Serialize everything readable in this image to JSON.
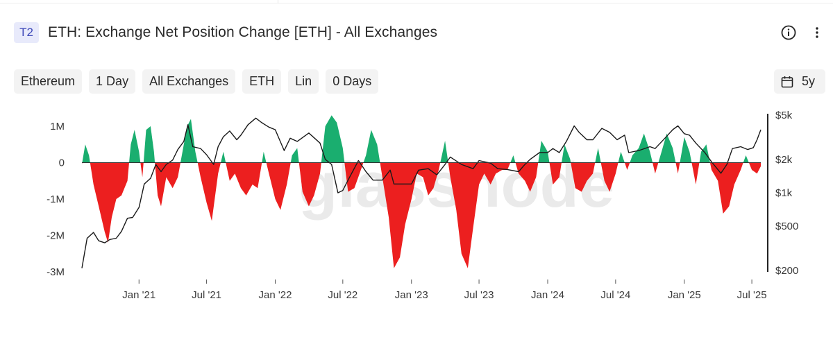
{
  "header": {
    "badge": "T2",
    "title": "ETH: Exchange Net Position Change [ETH] - All Exchanges"
  },
  "toolbar": {
    "info_icon": "info-circle-icon",
    "more_icon": "vertical-ellipsis-icon"
  },
  "filters": [
    "Ethereum",
    "1 Day",
    "All Exchanges",
    "ETH",
    "Lin",
    "0 Days"
  ],
  "range": {
    "icon": "calendar-icon",
    "label": "5y"
  },
  "colors": {
    "positive": "#1aae6f",
    "negative": "#ec1f1f",
    "price": "#1a1a1a"
  },
  "watermark": "glassnode",
  "chart_data": {
    "type": "area",
    "x_ticks": [
      "Jan '21",
      "Jul '21",
      "Jan '22",
      "Jul '22",
      "Jan '23",
      "Jul '23",
      "Jan '24",
      "Jul '24",
      "Jan '25",
      "Jul '25"
    ],
    "x_range": [
      "2020-08-01",
      "2025-07-25"
    ],
    "y_left": {
      "ticks": [
        "1M",
        "0",
        "-1M",
        "-2M",
        "-3M"
      ],
      "range": [
        -3000000,
        1000000
      ]
    },
    "y_right": {
      "ticks": [
        "$5k",
        "$2k",
        "$1k",
        "$500",
        "$200"
      ],
      "scale": "log",
      "range": [
        200,
        5000
      ]
    },
    "grid": false,
    "net_position_change": [
      {
        "d": "2020-08-01",
        "v": -50000
      },
      {
        "d": "2020-08-10",
        "v": 500000
      },
      {
        "d": "2020-08-20",
        "v": 200000
      },
      {
        "d": "2020-09-01",
        "v": -600000
      },
      {
        "d": "2020-09-15",
        "v": -1200000
      },
      {
        "d": "2020-10-01",
        "v": -1900000
      },
      {
        "d": "2020-10-10",
        "v": -2200000
      },
      {
        "d": "2020-10-20",
        "v": -1500000
      },
      {
        "d": "2020-11-01",
        "v": -1000000
      },
      {
        "d": "2020-11-15",
        "v": -900000
      },
      {
        "d": "2020-12-01",
        "v": -500000
      },
      {
        "d": "2020-12-10",
        "v": 500000
      },
      {
        "d": "2020-12-20",
        "v": 900000
      },
      {
        "d": "2021-01-01",
        "v": 300000
      },
      {
        "d": "2021-01-10",
        "v": -400000
      },
      {
        "d": "2021-01-20",
        "v": 900000
      },
      {
        "d": "2021-02-01",
        "v": 1000000
      },
      {
        "d": "2021-02-10",
        "v": 300000
      },
      {
        "d": "2021-02-20",
        "v": -900000
      },
      {
        "d": "2021-03-01",
        "v": -1200000
      },
      {
        "d": "2021-03-15",
        "v": -400000
      },
      {
        "d": "2021-04-01",
        "v": -700000
      },
      {
        "d": "2021-04-15",
        "v": -400000
      },
      {
        "d": "2021-05-01",
        "v": 500000
      },
      {
        "d": "2021-05-10",
        "v": 1000000
      },
      {
        "d": "2021-05-20",
        "v": 1200000
      },
      {
        "d": "2021-06-01",
        "v": 300000
      },
      {
        "d": "2021-06-15",
        "v": -400000
      },
      {
        "d": "2021-07-01",
        "v": -1100000
      },
      {
        "d": "2021-07-15",
        "v": -1600000
      },
      {
        "d": "2021-08-01",
        "v": -300000
      },
      {
        "d": "2021-08-15",
        "v": 300000
      },
      {
        "d": "2021-09-01",
        "v": -500000
      },
      {
        "d": "2021-09-15",
        "v": -300000
      },
      {
        "d": "2021-10-01",
        "v": -700000
      },
      {
        "d": "2021-10-15",
        "v": -900000
      },
      {
        "d": "2021-11-01",
        "v": -600000
      },
      {
        "d": "2021-11-15",
        "v": -700000
      },
      {
        "d": "2021-12-01",
        "v": 300000
      },
      {
        "d": "2021-12-15",
        "v": -300000
      },
      {
        "d": "2022-01-01",
        "v": -1000000
      },
      {
        "d": "2022-01-15",
        "v": -1300000
      },
      {
        "d": "2022-02-01",
        "v": -600000
      },
      {
        "d": "2022-02-15",
        "v": 200000
      },
      {
        "d": "2022-03-01",
        "v": 400000
      },
      {
        "d": "2022-03-15",
        "v": -800000
      },
      {
        "d": "2022-04-01",
        "v": -1200000
      },
      {
        "d": "2022-04-15",
        "v": -900000
      },
      {
        "d": "2022-05-01",
        "v": -300000
      },
      {
        "d": "2022-05-15",
        "v": 1000000
      },
      {
        "d": "2022-06-01",
        "v": 1300000
      },
      {
        "d": "2022-06-15",
        "v": 1100000
      },
      {
        "d": "2022-07-01",
        "v": 400000
      },
      {
        "d": "2022-07-15",
        "v": -800000
      },
      {
        "d": "2022-08-01",
        "v": -700000
      },
      {
        "d": "2022-08-15",
        "v": -300000
      },
      {
        "d": "2022-09-01",
        "v": 200000
      },
      {
        "d": "2022-09-15",
        "v": 900000
      },
      {
        "d": "2022-10-01",
        "v": 500000
      },
      {
        "d": "2022-10-15",
        "v": -400000
      },
      {
        "d": "2022-11-01",
        "v": -1500000
      },
      {
        "d": "2022-11-15",
        "v": -2900000
      },
      {
        "d": "2022-12-01",
        "v": -2600000
      },
      {
        "d": "2022-12-15",
        "v": -1700000
      },
      {
        "d": "2023-01-01",
        "v": -1000000
      },
      {
        "d": "2023-01-15",
        "v": -300000
      },
      {
        "d": "2023-02-01",
        "v": -400000
      },
      {
        "d": "2023-02-15",
        "v": -900000
      },
      {
        "d": "2023-03-01",
        "v": -700000
      },
      {
        "d": "2023-03-15",
        "v": -200000
      },
      {
        "d": "2023-04-01",
        "v": 600000
      },
      {
        "d": "2023-04-15",
        "v": -400000
      },
      {
        "d": "2023-05-01",
        "v": -1300000
      },
      {
        "d": "2023-05-15",
        "v": -2500000
      },
      {
        "d": "2023-06-01",
        "v": -2900000
      },
      {
        "d": "2023-06-15",
        "v": -1800000
      },
      {
        "d": "2023-07-01",
        "v": -600000
      },
      {
        "d": "2023-07-15",
        "v": -300000
      },
      {
        "d": "2023-08-01",
        "v": -600000
      },
      {
        "d": "2023-08-15",
        "v": -300000
      },
      {
        "d": "2023-09-01",
        "v": -200000
      },
      {
        "d": "2023-09-15",
        "v": -200000
      },
      {
        "d": "2023-10-01",
        "v": 200000
      },
      {
        "d": "2023-10-15",
        "v": -300000
      },
      {
        "d": "2023-11-01",
        "v": -500000
      },
      {
        "d": "2023-11-15",
        "v": -800000
      },
      {
        "d": "2023-12-01",
        "v": -400000
      },
      {
        "d": "2023-12-15",
        "v": 600000
      },
      {
        "d": "2024-01-01",
        "v": 300000
      },
      {
        "d": "2024-01-15",
        "v": -600000
      },
      {
        "d": "2024-02-01",
        "v": -400000
      },
      {
        "d": "2024-02-15",
        "v": 500000
      },
      {
        "d": "2024-03-01",
        "v": 100000
      },
      {
        "d": "2024-03-15",
        "v": -700000
      },
      {
        "d": "2024-04-01",
        "v": -800000
      },
      {
        "d": "2024-04-15",
        "v": -500000
      },
      {
        "d": "2024-05-01",
        "v": -300000
      },
      {
        "d": "2024-05-15",
        "v": 400000
      },
      {
        "d": "2024-06-01",
        "v": -500000
      },
      {
        "d": "2024-06-15",
        "v": -800000
      },
      {
        "d": "2024-07-01",
        "v": -300000
      },
      {
        "d": "2024-07-15",
        "v": 300000
      },
      {
        "d": "2024-08-01",
        "v": -200000
      },
      {
        "d": "2024-08-15",
        "v": 200000
      },
      {
        "d": "2024-09-01",
        "v": 400000
      },
      {
        "d": "2024-09-15",
        "v": 800000
      },
      {
        "d": "2024-10-01",
        "v": 300000
      },
      {
        "d": "2024-10-15",
        "v": -300000
      },
      {
        "d": "2024-11-01",
        "v": 300000
      },
      {
        "d": "2024-11-15",
        "v": 800000
      },
      {
        "d": "2024-12-01",
        "v": 400000
      },
      {
        "d": "2024-12-15",
        "v": -300000
      },
      {
        "d": "2025-01-01",
        "v": 700000
      },
      {
        "d": "2025-01-15",
        "v": 300000
      },
      {
        "d": "2025-02-01",
        "v": -600000
      },
      {
        "d": "2025-02-15",
        "v": 300000
      },
      {
        "d": "2025-03-01",
        "v": 500000
      },
      {
        "d": "2025-03-15",
        "v": -200000
      },
      {
        "d": "2025-04-01",
        "v": -500000
      },
      {
        "d": "2025-04-15",
        "v": -1400000
      },
      {
        "d": "2025-05-01",
        "v": -1200000
      },
      {
        "d": "2025-05-15",
        "v": -600000
      },
      {
        "d": "2025-06-01",
        "v": -200000
      },
      {
        "d": "2025-06-15",
        "v": 200000
      },
      {
        "d": "2025-07-01",
        "v": -200000
      },
      {
        "d": "2025-07-15",
        "v": -300000
      },
      {
        "d": "2025-07-25",
        "v": -100000
      }
    ],
    "price_usd": [
      {
        "d": "2020-08-01",
        "v": 210
      },
      {
        "d": "2020-08-15",
        "v": 390
      },
      {
        "d": "2020-09-01",
        "v": 440
      },
      {
        "d": "2020-09-15",
        "v": 370
      },
      {
        "d": "2020-10-01",
        "v": 355
      },
      {
        "d": "2020-10-15",
        "v": 380
      },
      {
        "d": "2020-11-01",
        "v": 390
      },
      {
        "d": "2020-11-15",
        "v": 450
      },
      {
        "d": "2020-12-01",
        "v": 590
      },
      {
        "d": "2020-12-15",
        "v": 600
      },
      {
        "d": "2021-01-01",
        "v": 740
      },
      {
        "d": "2021-01-15",
        "v": 1200
      },
      {
        "d": "2021-02-01",
        "v": 1350
      },
      {
        "d": "2021-02-15",
        "v": 1800
      },
      {
        "d": "2021-03-01",
        "v": 1550
      },
      {
        "d": "2021-03-15",
        "v": 1800
      },
      {
        "d": "2021-04-01",
        "v": 1970
      },
      {
        "d": "2021-04-15",
        "v": 2450
      },
      {
        "d": "2021-05-01",
        "v": 2900
      },
      {
        "d": "2021-05-12",
        "v": 4100
      },
      {
        "d": "2021-05-25",
        "v": 2600
      },
      {
        "d": "2021-06-15",
        "v": 2500
      },
      {
        "d": "2021-07-01",
        "v": 2200
      },
      {
        "d": "2021-07-20",
        "v": 1800
      },
      {
        "d": "2021-08-01",
        "v": 2600
      },
      {
        "d": "2021-08-15",
        "v": 3200
      },
      {
        "d": "2021-09-01",
        "v": 3600
      },
      {
        "d": "2021-09-20",
        "v": 3000
      },
      {
        "d": "2021-10-01",
        "v": 3300
      },
      {
        "d": "2021-10-20",
        "v": 4100
      },
      {
        "d": "2021-11-10",
        "v": 4700
      },
      {
        "d": "2021-11-25",
        "v": 4300
      },
      {
        "d": "2021-12-15",
        "v": 3900
      },
      {
        "d": "2022-01-01",
        "v": 3700
      },
      {
        "d": "2022-01-25",
        "v": 2400
      },
      {
        "d": "2022-02-10",
        "v": 3100
      },
      {
        "d": "2022-03-01",
        "v": 2900
      },
      {
        "d": "2022-04-01",
        "v": 3450
      },
      {
        "d": "2022-05-01",
        "v": 2800
      },
      {
        "d": "2022-05-15",
        "v": 2000
      },
      {
        "d": "2022-06-01",
        "v": 1800
      },
      {
        "d": "2022-06-18",
        "v": 1000
      },
      {
        "d": "2022-07-01",
        "v": 1050
      },
      {
        "d": "2022-07-15",
        "v": 1300
      },
      {
        "d": "2022-08-12",
        "v": 1950
      },
      {
        "d": "2022-09-01",
        "v": 1550
      },
      {
        "d": "2022-09-20",
        "v": 1300
      },
      {
        "d": "2022-10-15",
        "v": 1300
      },
      {
        "d": "2022-11-05",
        "v": 1600
      },
      {
        "d": "2022-11-15",
        "v": 1200
      },
      {
        "d": "2022-12-15",
        "v": 1200
      },
      {
        "d": "2023-01-01",
        "v": 1200
      },
      {
        "d": "2023-01-20",
        "v": 1600
      },
      {
        "d": "2023-02-15",
        "v": 1650
      },
      {
        "d": "2023-03-10",
        "v": 1450
      },
      {
        "d": "2023-04-01",
        "v": 1800
      },
      {
        "d": "2023-04-15",
        "v": 2100
      },
      {
        "d": "2023-05-15",
        "v": 1800
      },
      {
        "d": "2023-06-15",
        "v": 1650
      },
      {
        "d": "2023-07-01",
        "v": 1950
      },
      {
        "d": "2023-08-01",
        "v": 1850
      },
      {
        "d": "2023-08-20",
        "v": 1650
      },
      {
        "d": "2023-09-15",
        "v": 1620
      },
      {
        "d": "2023-10-15",
        "v": 1550
      },
      {
        "d": "2023-11-01",
        "v": 1800
      },
      {
        "d": "2023-11-15",
        "v": 2000
      },
      {
        "d": "2023-12-10",
        "v": 2300
      },
      {
        "d": "2024-01-01",
        "v": 2300
      },
      {
        "d": "2024-01-15",
        "v": 2500
      },
      {
        "d": "2024-02-01",
        "v": 2300
      },
      {
        "d": "2024-02-20",
        "v": 2900
      },
      {
        "d": "2024-03-12",
        "v": 4000
      },
      {
        "d": "2024-03-25",
        "v": 3500
      },
      {
        "d": "2024-04-15",
        "v": 3000
      },
      {
        "d": "2024-05-01",
        "v": 3000
      },
      {
        "d": "2024-05-25",
        "v": 3800
      },
      {
        "d": "2024-06-15",
        "v": 3500
      },
      {
        "d": "2024-07-05",
        "v": 3000
      },
      {
        "d": "2024-07-25",
        "v": 3300
      },
      {
        "d": "2024-08-05",
        "v": 2300
      },
      {
        "d": "2024-09-01",
        "v": 2400
      },
      {
        "d": "2024-10-01",
        "v": 2600
      },
      {
        "d": "2024-10-15",
        "v": 2500
      },
      {
        "d": "2024-11-10",
        "v": 3100
      },
      {
        "d": "2024-12-01",
        "v": 3700
      },
      {
        "d": "2024-12-15",
        "v": 4000
      },
      {
        "d": "2025-01-01",
        "v": 3400
      },
      {
        "d": "2025-01-15",
        "v": 3300
      },
      {
        "d": "2025-02-01",
        "v": 2800
      },
      {
        "d": "2025-02-25",
        "v": 2300
      },
      {
        "d": "2025-03-15",
        "v": 1900
      },
      {
        "d": "2025-04-09",
        "v": 1500
      },
      {
        "d": "2025-04-25",
        "v": 1800
      },
      {
        "d": "2025-05-10",
        "v": 2500
      },
      {
        "d": "2025-06-01",
        "v": 2600
      },
      {
        "d": "2025-06-20",
        "v": 2450
      },
      {
        "d": "2025-07-05",
        "v": 2550
      },
      {
        "d": "2025-07-15",
        "v": 3000
      },
      {
        "d": "2025-07-25",
        "v": 3700
      }
    ]
  }
}
